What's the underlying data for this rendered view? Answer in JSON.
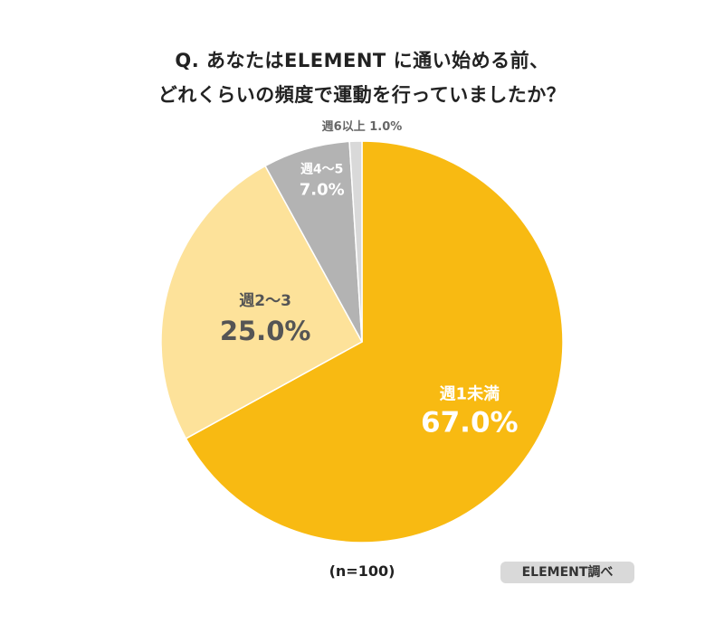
{
  "title": {
    "line1": "Q. あなたはELEMENT に通い始める前、",
    "line2": "どれくらいの頻度で運動を行っていましたか？"
  },
  "sample_size_label": "(n=100)",
  "source_badge": "ELEMENT調べ",
  "chart_data": {
    "type": "pie",
    "title": "Q. あなたはELEMENT に通い始める前、どれくらいの頻度で運動を行っていましたか？",
    "slices": [
      {
        "label": "週1未満",
        "value": 67.0,
        "value_label": "67.0%",
        "color": "#F8BA12"
      },
      {
        "label": "週2〜3",
        "value": 25.0,
        "value_label": "25.0%",
        "color": "#FDE29A"
      },
      {
        "label": "週4〜5",
        "value": 7.0,
        "value_label": "7.0%",
        "color": "#B3B3B3"
      },
      {
        "label": "週6以上",
        "value": 1.0,
        "value_label": "1.0%",
        "color": "#D9D9D9"
      }
    ],
    "start_angle": "12 o'clock",
    "direction": "clockwise"
  }
}
